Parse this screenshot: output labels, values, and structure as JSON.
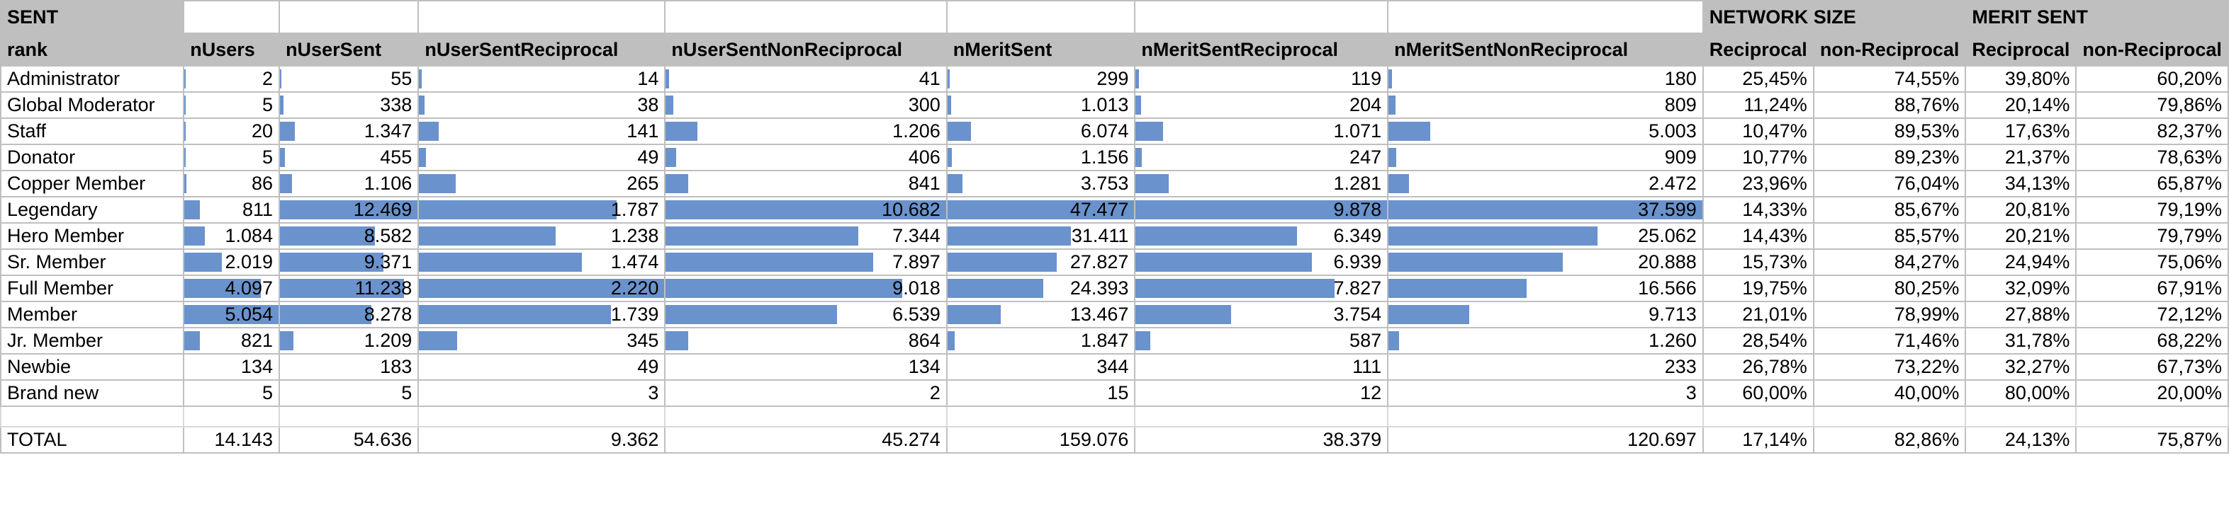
{
  "bar_color": "#6a92cc",
  "header_fill": "#bfbfbf",
  "title": "SENT",
  "group_headers": {
    "network_size": "NETWORK SIZE",
    "merit_sent": "MERIT SENT"
  },
  "columns": [
    "rank",
    "nUsers",
    "nUserSent",
    "nUserSentReciprocal",
    "nUserSentNonReciprocal",
    "nMeritSent",
    "nMeritSentReciprocal",
    "nMeritSentNonReciprocal",
    "Reciprocal",
    "non-Reciprocal",
    "Reciprocal",
    "non-Reciprocal"
  ],
  "rows": [
    {
      "cells": [
        "Administrator",
        "2",
        "55",
        "14",
        "41",
        "299",
        "119",
        "180",
        "25,45%",
        "74,55%",
        "39,80%",
        "60,20%"
      ],
      "fill": {
        "nUsers": 0.0002,
        "nUserSent": 0.0044,
        "nUserSentReciprocal": 0.0078,
        "nUserSentNonReciprocal": 0.0038,
        "nMeritSent": 0.0063,
        "nMeritSentReciprocal": 0.012,
        "nMeritSentNonReciprocal": 0.0048
      }
    },
    {
      "cells": [
        "Global Moderator",
        "5",
        "338",
        "38",
        "300",
        "1.013",
        "204",
        "809",
        "11,24%",
        "88,76%",
        "20,14%",
        "79,86%"
      ],
      "fill": {
        "nUsers": 0.001,
        "nUserSent": 0.027,
        "nUserSentReciprocal": 0.021,
        "nUserSentNonReciprocal": 0.028,
        "nMeritSent": 0.021,
        "nMeritSentReciprocal": 0.021,
        "nMeritSentNonReciprocal": 0.0215
      }
    },
    {
      "cells": [
        "Staff",
        "20",
        "1.347",
        "141",
        "1.206",
        "6.074",
        "1.071",
        "5.003",
        "10,47%",
        "89,53%",
        "17,63%",
        "82,37%"
      ],
      "fill": {
        "nUsers": 0.004,
        "nUserSent": 0.108,
        "nUserSentReciprocal": 0.079,
        "nUserSentNonReciprocal": 0.113,
        "nMeritSent": 0.128,
        "nMeritSentReciprocal": 0.108,
        "nMeritSentNonReciprocal": 0.133
      }
    },
    {
      "cells": [
        "Donator",
        "5",
        "455",
        "49",
        "406",
        "1.156",
        "247",
        "909",
        "10,77%",
        "89,23%",
        "21,37%",
        "78,63%"
      ],
      "fill": {
        "nUsers": 0.001,
        "nUserSent": 0.036,
        "nUserSentReciprocal": 0.027,
        "nUserSentNonReciprocal": 0.038,
        "nMeritSent": 0.024,
        "nMeritSentReciprocal": 0.025,
        "nMeritSentNonReciprocal": 0.024
      }
    },
    {
      "cells": [
        "Copper Member",
        "86",
        "1.106",
        "265",
        "841",
        "3.753",
        "1.281",
        "2.472",
        "23,96%",
        "76,04%",
        "34,13%",
        "65,87%"
      ],
      "fill": {
        "nUsers": 0.017,
        "nUserSent": 0.089,
        "nUserSentReciprocal": 0.148,
        "nUserSentNonReciprocal": 0.079,
        "nMeritSent": 0.079,
        "nMeritSentReciprocal": 0.13,
        "nMeritSentNonReciprocal": 0.066
      }
    },
    {
      "cells": [
        "Legendary",
        "811",
        "12.469",
        "1.787",
        "10.682",
        "47.477",
        "9.878",
        "37.599",
        "14,33%",
        "85,67%",
        "20,81%",
        "79,19%"
      ],
      "fill": {
        "nUsers": 0.16,
        "nUserSent": 1.0,
        "nUserSentReciprocal": 0.805,
        "nUserSentNonReciprocal": 1.0,
        "nMeritSent": 1.0,
        "nMeritSentReciprocal": 1.0,
        "nMeritSentNonReciprocal": 1.0
      }
    },
    {
      "cells": [
        "Hero Member",
        "1.084",
        "8.582",
        "1.238",
        "7.344",
        "31.411",
        "6.349",
        "25.062",
        "14,43%",
        "85,57%",
        "20,21%",
        "79,79%"
      ],
      "fill": {
        "nUsers": 0.214,
        "nUserSent": 0.688,
        "nUserSentReciprocal": 0.558,
        "nUserSentNonReciprocal": 0.688,
        "nMeritSent": 0.662,
        "nMeritSentReciprocal": 0.643,
        "nMeritSentNonReciprocal": 0.667
      }
    },
    {
      "cells": [
        "Sr. Member",
        "2.019",
        "9.371",
        "1.474",
        "7.897",
        "27.827",
        "6.939",
        "20.888",
        "15,73%",
        "84,27%",
        "24,94%",
        "75,06%"
      ],
      "fill": {
        "nUsers": 0.4,
        "nUserSent": 0.752,
        "nUserSentReciprocal": 0.664,
        "nUserSentNonReciprocal": 0.739,
        "nMeritSent": 0.586,
        "nMeritSentReciprocal": 0.702,
        "nMeritSentNonReciprocal": 0.556
      }
    },
    {
      "cells": [
        "Full Member",
        "4.097",
        "11.238",
        "2.220",
        "9.018",
        "24.393",
        "7.827",
        "16.566",
        "19,75%",
        "80,25%",
        "32,09%",
        "67,91%"
      ],
      "fill": {
        "nUsers": 0.811,
        "nUserSent": 0.901,
        "nUserSentReciprocal": 1.0,
        "nUserSentNonReciprocal": 0.844,
        "nMeritSent": 0.514,
        "nMeritSentReciprocal": 0.792,
        "nMeritSentNonReciprocal": 0.441
      }
    },
    {
      "cells": [
        "Member",
        "5.054",
        "8.278",
        "1.739",
        "6.539",
        "13.467",
        "3.754",
        "9.713",
        "21,01%",
        "78,99%",
        "27,88%",
        "72,12%"
      ],
      "fill": {
        "nUsers": 1.0,
        "nUserSent": 0.664,
        "nUserSentReciprocal": 0.783,
        "nUserSentNonReciprocal": 0.612,
        "nMeritSent": 0.284,
        "nMeritSentReciprocal": 0.38,
        "nMeritSentNonReciprocal": 0.258
      }
    },
    {
      "cells": [
        "Jr. Member",
        "821",
        "1.209",
        "345",
        "864",
        "1.847",
        "587",
        "1.260",
        "28,54%",
        "71,46%",
        "31,78%",
        "68,22%"
      ],
      "fill": {
        "nUsers": 0.162,
        "nUserSent": 0.097,
        "nUserSentReciprocal": 0.155,
        "nUserSentNonReciprocal": 0.081,
        "nMeritSent": 0.039,
        "nMeritSentReciprocal": 0.059,
        "nMeritSentNonReciprocal": 0.034
      }
    },
    {
      "cells": [
        "Newbie",
        "134",
        "183",
        "49",
        "134",
        "344",
        "111",
        "233",
        "26,78%",
        "73,22%",
        "32,27%",
        "67,73%"
      ],
      "fill": {
        "nUsers": 0.0,
        "nUserSent": 0.0,
        "nUserSentReciprocal": 0.0,
        "nUserSentNonReciprocal": 0.0,
        "nMeritSent": 0.0,
        "nMeritSentReciprocal": 0.0,
        "nMeritSentNonReciprocal": 0.0
      }
    },
    {
      "cells": [
        "Brand new",
        "5",
        "5",
        "3",
        "2",
        "15",
        "12",
        "3",
        "60,00%",
        "40,00%",
        "80,00%",
        "20,00%"
      ],
      "fill": {
        "nUsers": 0.0,
        "nUserSent": 0.0,
        "nUserSentReciprocal": 0.0,
        "nUserSentNonReciprocal": 0.0,
        "nMeritSent": 0.0,
        "nMeritSentReciprocal": 0.0,
        "nMeritSentNonReciprocal": 0.0
      }
    }
  ],
  "total": [
    "TOTAL",
    "14.143",
    "54.636",
    "9.362",
    "45.274",
    "159.076",
    "38.379",
    "120.697",
    "17,14%",
    "82,86%",
    "24,13%",
    "75,87%"
  ]
}
